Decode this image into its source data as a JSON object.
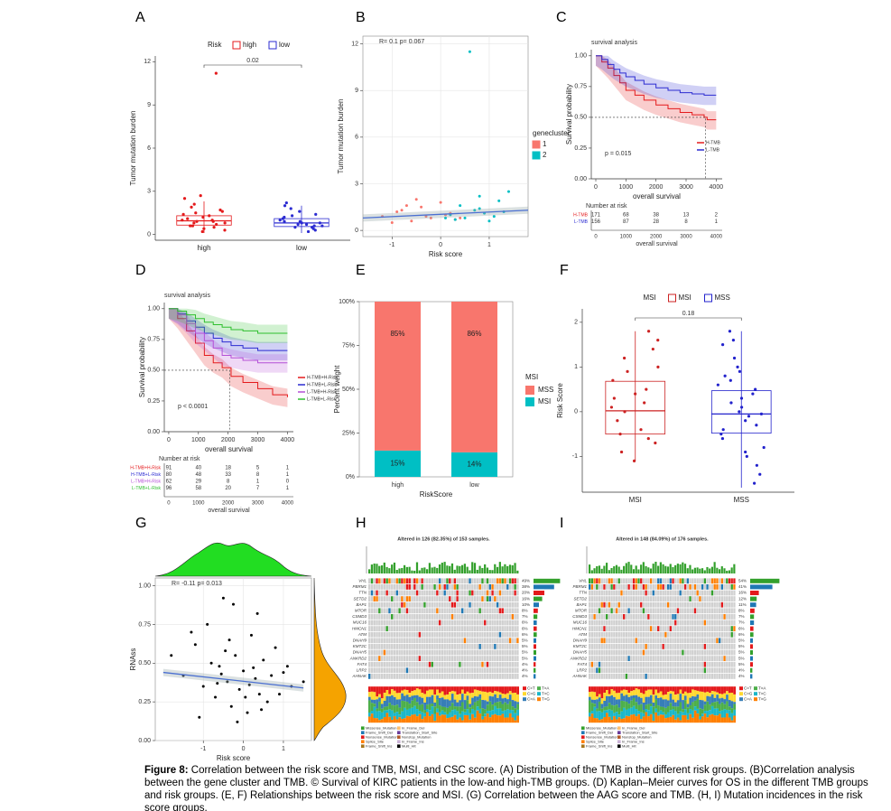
{
  "chart_data": [
    {
      "label": "A",
      "type": "box",
      "legend_title": "Risk",
      "ylabel": "Tumor mutation burden",
      "categories": [
        "high",
        "low"
      ],
      "pvalue": "0.02",
      "ylim": [
        -0.4,
        12.4
      ],
      "yticks": [
        0,
        3,
        6,
        9,
        12
      ],
      "series": [
        {
          "name": "high",
          "color": "#e41a1c",
          "q1": 0.65,
          "median": 0.95,
          "q3": 1.3,
          "whislo": 0.1,
          "whishi": 2.3,
          "points": [
            1.0,
            0.6,
            1.4,
            0.8,
            1.9,
            2.5,
            0.3,
            1.1,
            0.9,
            1.6,
            0.5,
            0.7,
            1.2,
            2.1,
            0.4,
            1.3,
            0.8,
            1.0,
            11.2,
            1.7,
            0.6,
            0.9,
            1.5,
            0.2,
            2.7
          ]
        },
        {
          "name": "low",
          "color": "#2b2bd1",
          "q1": 0.55,
          "median": 0.8,
          "q3": 1.1,
          "whislo": 0.1,
          "whishi": 2.0,
          "points": [
            0.8,
            0.5,
            1.1,
            0.7,
            1.4,
            2.2,
            0.3,
            0.9,
            0.6,
            1.3,
            0.4,
            1.0,
            1.8,
            0.2,
            0.8,
            1.2,
            0.5,
            0.7,
            1.6,
            0.9,
            2.0,
            0.6
          ]
        }
      ]
    },
    {
      "label": "B",
      "type": "scatter",
      "annotation": "R= 0.1  p= 0.067",
      "xlabel": "Risk score",
      "ylabel": "Tumor mutation burden",
      "legend_title": "genecluster",
      "grid": true,
      "xlim": [
        -1.6,
        1.8
      ],
      "xticks": [
        -1,
        0,
        1
      ],
      "ylim": [
        -0.4,
        12.5
      ],
      "yticks": [
        0,
        3,
        6,
        9,
        12
      ],
      "fit": {
        "x": [
          -1.6,
          1.8
        ],
        "y": [
          0.8,
          1.3
        ]
      },
      "series": [
        {
          "name": "1",
          "color": "#f8766d",
          "x": [
            -1.2,
            -0.9,
            -0.6,
            -0.4,
            -0.2,
            0,
            0.1,
            0.3,
            -0.8,
            -0.5,
            -1.0,
            0.2,
            -0.3,
            -0.7,
            0.4
          ],
          "y": [
            0.9,
            1.2,
            0.6,
            1.5,
            0.8,
            1.8,
            1.0,
            0.7,
            1.3,
            2.0,
            0.5,
            1.1,
            0.9,
            1.6,
            0.8
          ]
        },
        {
          "name": "2",
          "color": "#00bfc4",
          "x": [
            0.2,
            0.5,
            0.8,
            1.0,
            1.2,
            0.6,
            0.9,
            1.4,
            0.3,
            0.7,
            1.1,
            0.4,
            1.3,
            0.1,
            0.8
          ],
          "y": [
            1.0,
            0.8,
            1.4,
            0.6,
            1.9,
            11.5,
            1.1,
            2.5,
            0.7,
            1.3,
            0.9,
            1.6,
            1.2,
            0.8,
            2.2
          ]
        }
      ]
    },
    {
      "label": "C",
      "type": "km",
      "title": "survival analysis",
      "xlabel": "overall survival",
      "ylabel": "Survival probability",
      "pvalue": "p = 0.015",
      "risk_title": "Number at risk",
      "median": [
        3650,
        0.5
      ],
      "xlim": [
        -150,
        4200
      ],
      "xticks": [
        0,
        1000,
        2000,
        3000,
        4000
      ],
      "ylim": [
        0,
        1.05
      ],
      "yticks": [
        {
          "value": 0,
          "label": "0.00"
        },
        0.25,
        {
          "value": 0.5,
          "label": "0.50"
        },
        0.75,
        {
          "value": 1,
          "label": "1.00"
        }
      ],
      "series": [
        {
          "name": "H-TMB",
          "color": "#e41a1c",
          "x": [
            0,
            200,
            400,
            600,
            800,
            1000,
            1300,
            1600,
            2000,
            2400,
            2800,
            3200,
            3600,
            3700,
            4000
          ],
          "values": [
            1,
            0.95,
            0.9,
            0.84,
            0.78,
            0.72,
            0.68,
            0.64,
            0.6,
            0.57,
            0.54,
            0.52,
            0.5,
            0.48,
            0.48
          ],
          "at_risk": [
            171,
            68,
            38,
            13,
            2
          ]
        },
        {
          "name": "L-TMB",
          "color": "#2b2bd1",
          "x": [
            0,
            200,
            400,
            600,
            800,
            1000,
            1300,
            1600,
            2000,
            2400,
            2800,
            3200,
            3600,
            4000
          ],
          "values": [
            1,
            0.97,
            0.93,
            0.89,
            0.86,
            0.83,
            0.8,
            0.77,
            0.74,
            0.72,
            0.7,
            0.69,
            0.68,
            0.68
          ],
          "at_risk": [
            156,
            87,
            28,
            8,
            1
          ]
        }
      ]
    },
    {
      "label": "D",
      "type": "km",
      "title": "survival analysis",
      "xlabel": "overall survival",
      "ylabel": "Survival probability",
      "pvalue": "p < 0.0001",
      "risk_title": "Number at risk",
      "median": [
        2050,
        0.5
      ],
      "xlim": [
        -150,
        4200
      ],
      "xticks": [
        0,
        1000,
        2000,
        3000,
        4000
      ],
      "ylim": [
        0,
        1.05
      ],
      "yticks": [
        {
          "value": 0,
          "label": "0.00"
        },
        0.25,
        {
          "value": 0.5,
          "label": "0.50"
        },
        0.75,
        {
          "value": 1,
          "label": "1.00"
        }
      ],
      "series": [
        {
          "name": "H-TMB+H-Risk",
          "color": "#e41a1c",
          "x": [
            0,
            300,
            600,
            900,
            1200,
            1500,
            1800,
            2100,
            2500,
            3000,
            3500,
            4000
          ],
          "values": [
            1,
            0.92,
            0.82,
            0.72,
            0.62,
            0.56,
            0.52,
            0.45,
            0.4,
            0.35,
            0.3,
            0.28
          ],
          "at_risk": [
            91,
            40,
            18,
            5,
            1
          ]
        },
        {
          "name": "H-TMB+L-Risk",
          "color": "#2b2bd1",
          "x": [
            0,
            300,
            600,
            900,
            1200,
            1500,
            1800,
            2100,
            2500,
            3000,
            3500,
            4000
          ],
          "values": [
            1,
            0.96,
            0.9,
            0.85,
            0.8,
            0.76,
            0.73,
            0.7,
            0.68,
            0.66,
            0.66,
            0.66
          ],
          "at_risk": [
            80,
            48,
            33,
            8,
            1
          ]
        },
        {
          "name": "L-TMB+H-Risk",
          "color": "#b44fd6",
          "x": [
            0,
            300,
            600,
            900,
            1200,
            1500,
            1800,
            2100,
            2500,
            3000,
            3500,
            4000
          ],
          "values": [
            1,
            0.95,
            0.88,
            0.8,
            0.74,
            0.68,
            0.62,
            0.6,
            0.58,
            0.56,
            0.56,
            0.56
          ],
          "at_risk": [
            62,
            29,
            8,
            1,
            0
          ]
        },
        {
          "name": "L-TMB+L-Risk",
          "color": "#2fbf2f",
          "x": [
            0,
            300,
            600,
            900,
            1200,
            1500,
            1800,
            2100,
            2500,
            3000,
            3500,
            4000
          ],
          "values": [
            1,
            0.98,
            0.95,
            0.92,
            0.89,
            0.87,
            0.85,
            0.83,
            0.82,
            0.8,
            0.8,
            0.8
          ],
          "at_risk": [
            96,
            58,
            20,
            7,
            1
          ]
        }
      ]
    },
    {
      "label": "E",
      "type": "stacked",
      "xlabel": "RiskScore",
      "ylabel": "Percent weight",
      "legend_title": "MSI",
      "categories": [
        "high",
        "low"
      ],
      "ylim": [
        0,
        100
      ],
      "yticks": [
        {
          "value": 0,
          "label": "0%"
        },
        {
          "value": 25,
          "label": "25%"
        },
        {
          "value": 50,
          "label": "50%"
        },
        {
          "value": 75,
          "label": "75%"
        },
        {
          "value": 100,
          "label": "100%"
        }
      ],
      "series": [
        {
          "name": "MSI",
          "color": "#00bfc4",
          "values": [
            15,
            14
          ],
          "value_labels": [
            "15%",
            "14%"
          ]
        },
        {
          "name": "MSS",
          "color": "#f8766d",
          "values": [
            85,
            86
          ],
          "value_labels": [
            "85%",
            "86%"
          ]
        }
      ]
    },
    {
      "label": "F",
      "type": "box",
      "legend_title": "MSI",
      "ylabel": "Risk Score",
      "categories": [
        "MSI",
        "MSS"
      ],
      "pvalue": "0.18",
      "ylim": [
        -1.8,
        2.3
      ],
      "yticks": [
        -1,
        0,
        1,
        2
      ],
      "series": [
        {
          "name": "MSI",
          "color": "#cc2222",
          "q1": -0.5,
          "median": 0.02,
          "q3": 0.68,
          "whislo": -1.1,
          "whishi": 1.8,
          "points": [
            0.1,
            -0.5,
            0.7,
            1.2,
            -0.9,
            0.3,
            1.6,
            -0.2,
            0.9,
            -0.7,
            0.5,
            1.8,
            -1.1,
            0.0,
            0.4,
            -0.4,
            1.0,
            0.2,
            -0.6,
            1.4
          ]
        },
        {
          "name": "MSS",
          "color": "#2222cc",
          "q1": -0.48,
          "median": -0.05,
          "q3": 0.47,
          "whislo": -1.7,
          "whishi": 1.8,
          "points": [
            -0.05,
            0.4,
            -0.5,
            1.0,
            -1.2,
            0.8,
            -0.3,
            1.5,
            -0.8,
            0.2,
            -1.6,
            0.6,
            1.8,
            -0.1,
            0.3,
            -0.6,
            1.2,
            -1.0,
            0.0,
            0.9,
            -0.4,
            0.5,
            -1.4,
            1.6,
            0.1,
            -0.2,
            0.7,
            -0.9
          ]
        }
      ]
    },
    {
      "label": "G",
      "type": "scatter",
      "annotation": "R= -0.11  p= 0.013",
      "xlabel": "Risk score",
      "ylabel": "RNAss",
      "grid": true,
      "xlim": [
        -2.2,
        1.7
      ],
      "xticks": [
        -1,
        0,
        1
      ],
      "ylim": [
        0,
        1.05
      ],
      "yticks": [
        {
          "value": 0,
          "label": "0.00"
        },
        0.25,
        {
          "value": 0.5,
          "label": "0.50"
        },
        0.75,
        {
          "value": 1,
          "label": "1.00"
        }
      ],
      "fit": {
        "x": [
          -2.0,
          1.5
        ],
        "y": [
          0.44,
          0.34
        ]
      },
      "series": [
        {
          "name": "RNAss",
          "color": "#000000",
          "x": [
            -1.8,
            -1.5,
            -1.2,
            -1.0,
            -0.9,
            -0.7,
            -0.6,
            -0.5,
            -0.4,
            -0.3,
            -0.2,
            -0.1,
            0,
            0.1,
            0.2,
            0.3,
            0.4,
            0.5,
            0.6,
            0.8,
            1.0,
            1.2,
            1.5,
            -1.1,
            -0.8,
            -0.35,
            0.05,
            0.35,
            0.7,
            -0.65,
            -0.15,
            0.25,
            -0.45,
            0.15,
            -1.3,
            0.9,
            -0.55,
            0.45,
            -0.25,
            1.1
          ],
          "y": [
            0.55,
            0.42,
            0.62,
            0.35,
            0.75,
            0.28,
            0.48,
            0.92,
            0.38,
            0.22,
            0.55,
            0.33,
            0.45,
            0.18,
            0.68,
            0.4,
            0.3,
            0.52,
            0.25,
            0.6,
            0.44,
            0.35,
            0.38,
            0.15,
            0.5,
            0.65,
            0.28,
            0.82,
            0.42,
            0.37,
            0.12,
            0.47,
            0.58,
            0.36,
            0.7,
            0.3,
            0.43,
            0.2,
            0.88,
            0.48
          ]
        }
      ]
    },
    {
      "label": "H",
      "type": "onco",
      "title": "Altered in 126 (82.35%) of 153 samples.",
      "genes": [
        "VHL",
        "PBRM1",
        "TTN",
        "SETD2",
        "BAP1",
        "MTOR",
        "CSMD3",
        "MUC16",
        "HMCN1",
        "ATM",
        "DNAH9",
        "KMT2C",
        "DNAH5",
        "ANKRD2",
        "FAT4",
        "LRP2",
        "AHNAK"
      ],
      "values": [
        49,
        38,
        20,
        16,
        10,
        8,
        7,
        6,
        6,
        6,
        5,
        5,
        5,
        5,
        4,
        4,
        4
      ],
      "value_labels": [
        "49%",
        "38%",
        "20%",
        "16%",
        "10%",
        "8%",
        "7%",
        "6%",
        "6%",
        "6%",
        "5%",
        "5%",
        "5%",
        "5%",
        "4%",
        "4%",
        "4%"
      ],
      "classes": [
        {
          "name": "Missense_Mutation",
          "color": "#33a02c"
        },
        {
          "name": "Frame_Shift_Del",
          "color": "#1f78b4"
        },
        {
          "name": "Nonsense_Mutation",
          "color": "#e31a1c"
        },
        {
          "name": "Splice_Site",
          "color": "#ff7f00"
        },
        {
          "name": "Frame_Shift_Ins",
          "color": "#a6761d"
        },
        {
          "name": "In_Frame_Del",
          "color": "#fdbf6f"
        },
        {
          "name": "Translation_Start_Site",
          "color": "#6a3d9a"
        },
        {
          "name": "Nonstop_Mutation",
          "color": "#b15928"
        },
        {
          "name": "In_Frame_Ins",
          "color": "#cab2d6"
        },
        {
          "name": "Multi_Hit",
          "color": "#000000"
        }
      ],
      "titv": [
        {
          "name": "C>T",
          "color": "#e41a1c"
        },
        {
          "name": "C>G",
          "color": "#ffd92f"
        },
        {
          "name": "C>A",
          "color": "#377eb8"
        },
        {
          "name": "T>A",
          "color": "#4daf4a"
        },
        {
          "name": "T>C",
          "color": "#1bb7c9"
        },
        {
          "name": "T>G",
          "color": "#ff7f00"
        }
      ]
    },
    {
      "label": "I",
      "type": "onco",
      "title": "Altered in 148 (84.09%) of 176 samples.",
      "genes": [
        "VHL",
        "PBRM1",
        "TTN",
        "SETD2",
        "BAP1",
        "MTOR",
        "CSMD3",
        "MUC16",
        "HMCN1",
        "ATM",
        "DNAH9",
        "KMT2C",
        "DNAH5",
        "ANKRD2",
        "FAT4",
        "LRP2",
        "AHNAK"
      ],
      "values": [
        54,
        41,
        16,
        12,
        11,
        8,
        7,
        7,
        6,
        6,
        5,
        5,
        5,
        5,
        5,
        4,
        4
      ],
      "value_labels": [
        "54%",
        "41%",
        "16%",
        "12%",
        "11%",
        "8%",
        "7%",
        "7%",
        "6%",
        "6%",
        "5%",
        "5%",
        "5%",
        "5%",
        "5%",
        "4%",
        "4%"
      ],
      "classes": [
        {
          "name": "Missense_Mutation",
          "color": "#33a02c"
        },
        {
          "name": "Frame_Shift_Del",
          "color": "#1f78b4"
        },
        {
          "name": "Nonsense_Mutation",
          "color": "#e31a1c"
        },
        {
          "name": "Splice_Site",
          "color": "#ff7f00"
        },
        {
          "name": "Frame_Shift_Ins",
          "color": "#a6761d"
        },
        {
          "name": "In_Frame_Del",
          "color": "#fdbf6f"
        },
        {
          "name": "Translation_Start_Site",
          "color": "#6a3d9a"
        },
        {
          "name": "Nonstop_Mutation",
          "color": "#b15928"
        },
        {
          "name": "In_Frame_Ins",
          "color": "#cab2d6"
        },
        {
          "name": "Multi_Hit",
          "color": "#000000"
        }
      ],
      "titv": [
        {
          "name": "C>T",
          "color": "#e41a1c"
        },
        {
          "name": "C>G",
          "color": "#ffd92f"
        },
        {
          "name": "C>A",
          "color": "#377eb8"
        },
        {
          "name": "T>A",
          "color": "#4daf4a"
        },
        {
          "name": "T>C",
          "color": "#1bb7c9"
        },
        {
          "name": "T>G",
          "color": "#ff7f00"
        }
      ]
    }
  ],
  "caption": {
    "label": "Figure 8:",
    "text": "Correlation between the risk score and TMB, MSI, and CSC score. (A) Distribution of the TMB in the different risk groups. (B)Correlation analysis between the gene cluster and TMB. © Survival of KIRC patients in the low-and high-TMB groups. (D) Kaplan–Meier curves for OS in the different TMB groups and risk groups. (E, F) Relationships between the risk score and MSI. (G) Correlation between the AAG score and TMB. (H, I) Mutation incidences in the risk score groups."
  }
}
